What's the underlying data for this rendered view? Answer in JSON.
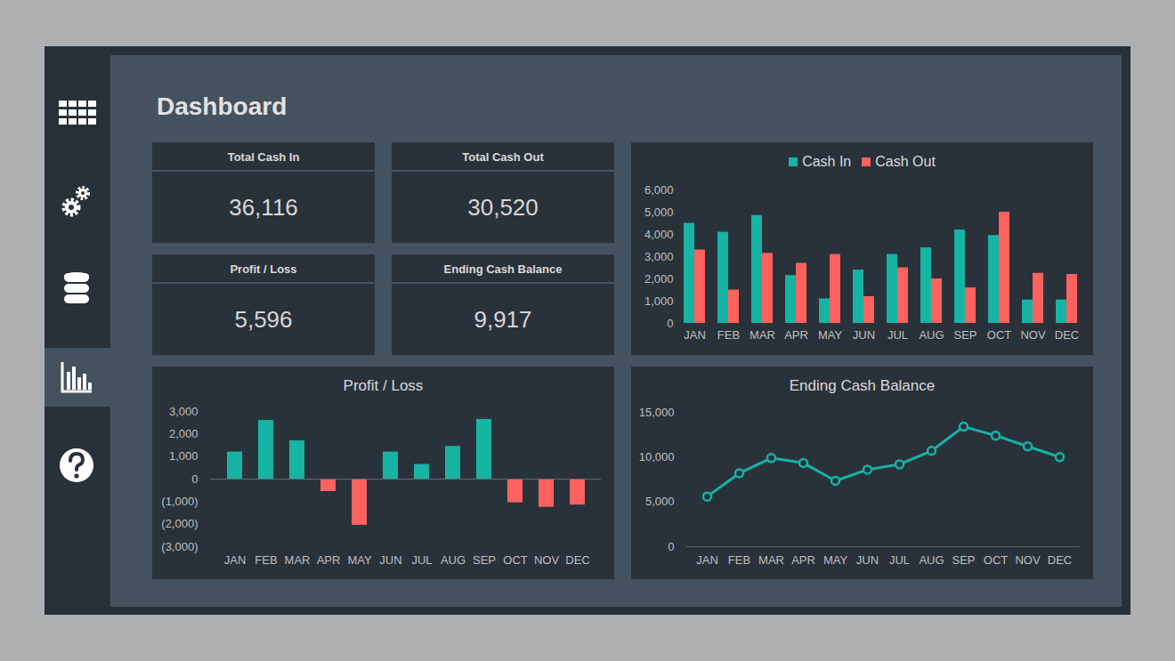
{
  "header": {
    "title": "Dashboard"
  },
  "cards": [
    {
      "label": "Total Cash In",
      "value": "36,116"
    },
    {
      "label": "Total Cash Out",
      "value": "30,520"
    },
    {
      "label": "Profit / Loss",
      "value": "5,596"
    },
    {
      "label": "Ending Cash Balance",
      "value": "9,917"
    }
  ],
  "chart_data": [
    {
      "type": "bar",
      "categories": [
        "JAN",
        "FEB",
        "MAR",
        "APR",
        "MAY",
        "JUN",
        "JUL",
        "AUG",
        "SEP",
        "OCT",
        "NOV",
        "DEC"
      ],
      "series": [
        {
          "name": "Cash In",
          "color": "#17b3a3",
          "values": [
            4500,
            4100,
            4850,
            2150,
            1100,
            2400,
            3100,
            3400,
            4200,
            3950,
            1050,
            1050
          ]
        },
        {
          "name": "Cash Out",
          "color": "#fd625e",
          "values": [
            3300,
            1500,
            3150,
            2700,
            3100,
            1200,
            2500,
            2000,
            1600,
            5000,
            2250,
            2200
          ]
        }
      ],
      "ylim": [
        0,
        6000
      ],
      "yticks": [
        0,
        {
          "value": 1000,
          "label": "1,000"
        },
        {
          "value": 2000,
          "label": "2,000"
        },
        {
          "value": 3000,
          "label": "3,000"
        },
        {
          "value": 4000,
          "label": "4,000"
        },
        {
          "value": 5000,
          "label": "5,000"
        },
        {
          "value": 6000,
          "label": "6,000"
        }
      ],
      "legend": "top"
    },
    {
      "type": "bar",
      "title": "Profit / Loss",
      "categories": [
        "JAN",
        "FEB",
        "MAR",
        "APR",
        "MAY",
        "JUN",
        "JUL",
        "AUG",
        "SEP",
        "OCT",
        "NOV",
        "DEC"
      ],
      "values": [
        1200,
        2600,
        1700,
        -550,
        -2050,
        1200,
        650,
        1450,
        2650,
        -1050,
        -1250,
        -1150
      ],
      "colors": [
        "#17b3a3",
        "#17b3a3",
        "#17b3a3",
        "#fd625e",
        "#fd625e",
        "#17b3a3",
        "#17b3a3",
        "#17b3a3",
        "#17b3a3",
        "#fd625e",
        "#fd625e",
        "#fd625e"
      ],
      "ylim": [
        -3000,
        3000
      ],
      "yticks": [
        {
          "value": -3000,
          "label": "(3,000)"
        },
        {
          "value": -2000,
          "label": "(2,000)"
        },
        {
          "value": -1000,
          "label": "(1,000)"
        },
        0,
        {
          "value": 1000,
          "label": "1,000"
        },
        {
          "value": 2000,
          "label": "2,000"
        },
        {
          "value": 3000,
          "label": "3,000"
        }
      ]
    },
    {
      "type": "line",
      "title": "Ending Cash Balance",
      "categories": [
        "JAN",
        "FEB",
        "MAR",
        "APR",
        "MAY",
        "JUN",
        "JUL",
        "AUG",
        "SEP",
        "OCT",
        "NOV",
        "DEC"
      ],
      "values": [
        5600,
        8200,
        9900,
        9350,
        7350,
        8600,
        9200,
        10700,
        13400,
        12400,
        11200,
        10000
      ],
      "color": "#17b3a3",
      "marker": "circle",
      "ylim": [
        0,
        15000
      ],
      "yticks": [
        0,
        {
          "value": 5000,
          "label": "5,000"
        },
        {
          "value": 10000,
          "label": "10,000"
        },
        {
          "value": 15000,
          "label": "15,000"
        }
      ]
    }
  ]
}
